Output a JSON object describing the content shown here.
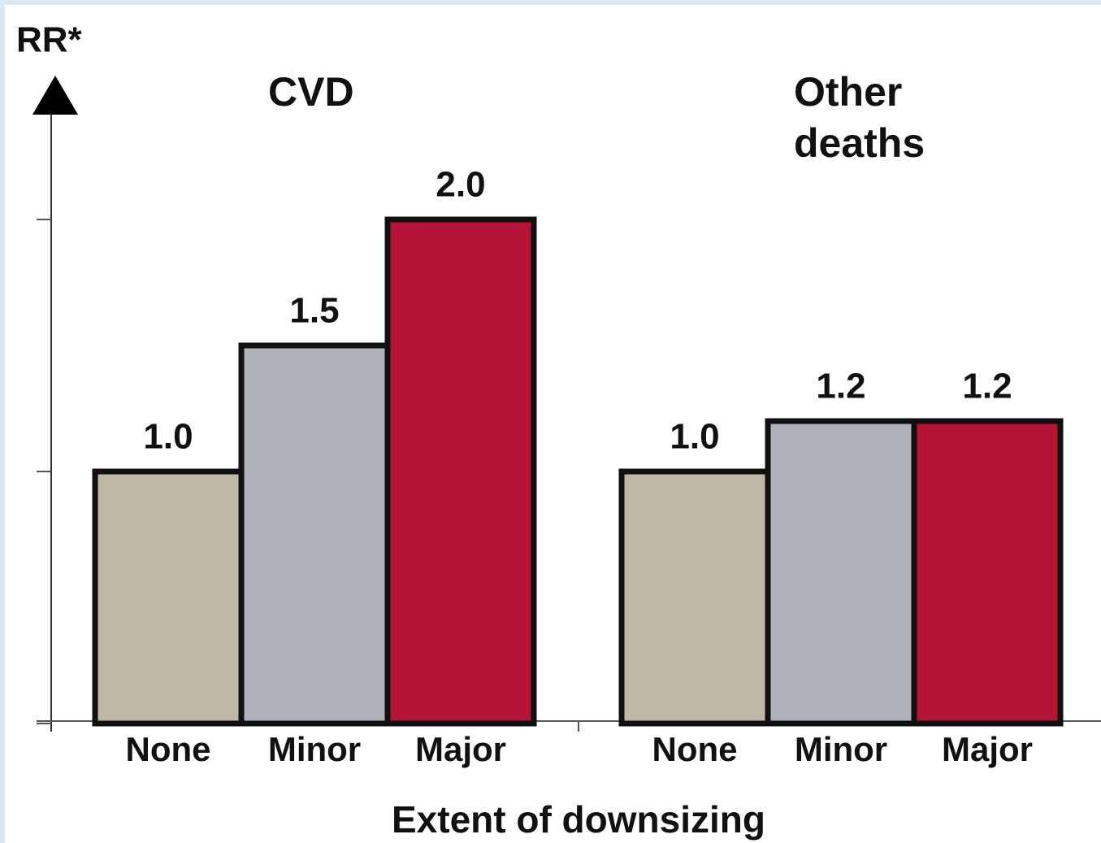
{
  "chart_data": {
    "type": "bar",
    "y_label": "RR*",
    "x_label": "Extent of downsizing",
    "ylim": [
      0,
      2.55
    ],
    "yticks": [
      0,
      1,
      2
    ],
    "ytick_labels": false,
    "colors": [
      "#bfb8a6",
      "#adb2b9",
      "#b51436"
    ],
    "groups": [
      {
        "title": "CVD",
        "categories": [
          "None",
          "Minor",
          "Major"
        ],
        "values": [
          1,
          1.5,
          2
        ],
        "value_labels": [
          "1.0",
          "1.5",
          "2.0"
        ]
      },
      {
        "title": "Other deaths",
        "categories": [
          "None",
          "Minor",
          "Major"
        ],
        "values": [
          1,
          1.2,
          1.2
        ],
        "value_labels": [
          "1.0",
          "1.2",
          "1.2"
        ]
      }
    ]
  }
}
